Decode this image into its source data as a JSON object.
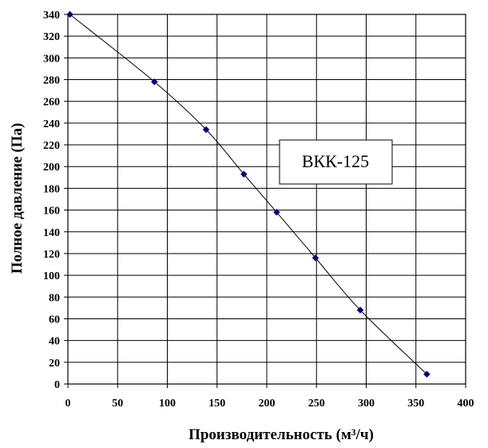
{
  "chart_data": {
    "type": "line",
    "title": "",
    "xlabel": "Производительность (м³/ч)",
    "ylabel": "Полное давление (Па)",
    "xlim": [
      0,
      400
    ],
    "ylim": [
      0,
      340
    ],
    "x_ticks": [
      "0",
      "50",
      "100",
      "150",
      "200",
      "250",
      "300",
      "350",
      "400"
    ],
    "y_ticks": [
      "0",
      "20",
      "40",
      "60",
      "80",
      "100",
      "120",
      "140",
      "160",
      "180",
      "200",
      "220",
      "240",
      "260",
      "280",
      "300",
      "320",
      "340"
    ],
    "grid": true,
    "series": [
      {
        "name": "ВКК-125",
        "x": [
          2,
          87,
          139,
          177,
          210,
          249,
          294,
          361
        ],
        "y": [
          340,
          278,
          234,
          193,
          158,
          116,
          68,
          9
        ]
      }
    ],
    "colors": {
      "marker": "#000080",
      "line": "#000000",
      "grid": "#000000"
    },
    "legend_placement": "center-right"
  }
}
